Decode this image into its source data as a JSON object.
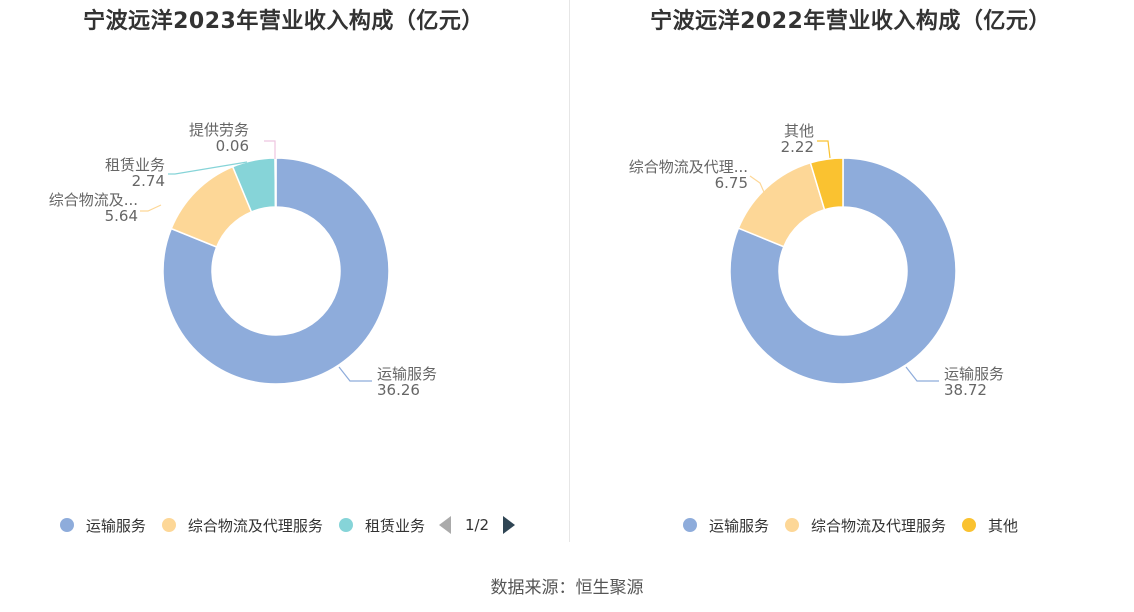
{
  "footer": {
    "source": "数据来源：恒生聚源"
  },
  "colors": {
    "transport": "#8eacdb",
    "logistics": "#fdd797",
    "leasing": "#86d4d8",
    "labor": "#eec5e0",
    "other": "#fac230"
  },
  "chart_data": [
    {
      "type": "pie",
      "subtype": "donut",
      "title": "宁波远洋2023年营业收入构成（亿元）",
      "slices": [
        {
          "label": "运输服务",
          "label_shown": "运输服务",
          "value": 36.26,
          "value_text": "36.26",
          "color": "#8eacdb"
        },
        {
          "label": "综合物流及代理服务",
          "label_shown": "综合物流及...",
          "value": 5.64,
          "value_text": "5.64",
          "color": "#fdd797"
        },
        {
          "label": "租赁业务",
          "label_shown": "租赁业务",
          "value": 2.74,
          "value_text": "2.74",
          "color": "#86d4d8"
        },
        {
          "label": "提供劳务",
          "label_shown": "提供劳务",
          "value": 0.06,
          "value_text": "0.06",
          "color": "#eec5e0"
        }
      ],
      "legend": {
        "placement": "bottom",
        "items": [
          "运输服务",
          "综合物流及代理服务",
          "租赁业务"
        ],
        "page": "1/2"
      }
    },
    {
      "type": "pie",
      "subtype": "donut",
      "title": "宁波远洋2022年营业收入构成（亿元）",
      "slices": [
        {
          "label": "运输服务",
          "label_shown": "运输服务",
          "value": 38.72,
          "value_text": "38.72",
          "color": "#8eacdb"
        },
        {
          "label": "综合物流及代理服务",
          "label_shown": "综合物流及代理...",
          "value": 6.75,
          "value_text": "6.75",
          "color": "#fdd797"
        },
        {
          "label": "其他",
          "label_shown": "其他",
          "value": 2.22,
          "value_text": "2.22",
          "color": "#fac230"
        }
      ],
      "legend": {
        "placement": "bottom",
        "items": [
          "运输服务",
          "综合物流及代理服务",
          "其他"
        ]
      }
    }
  ]
}
